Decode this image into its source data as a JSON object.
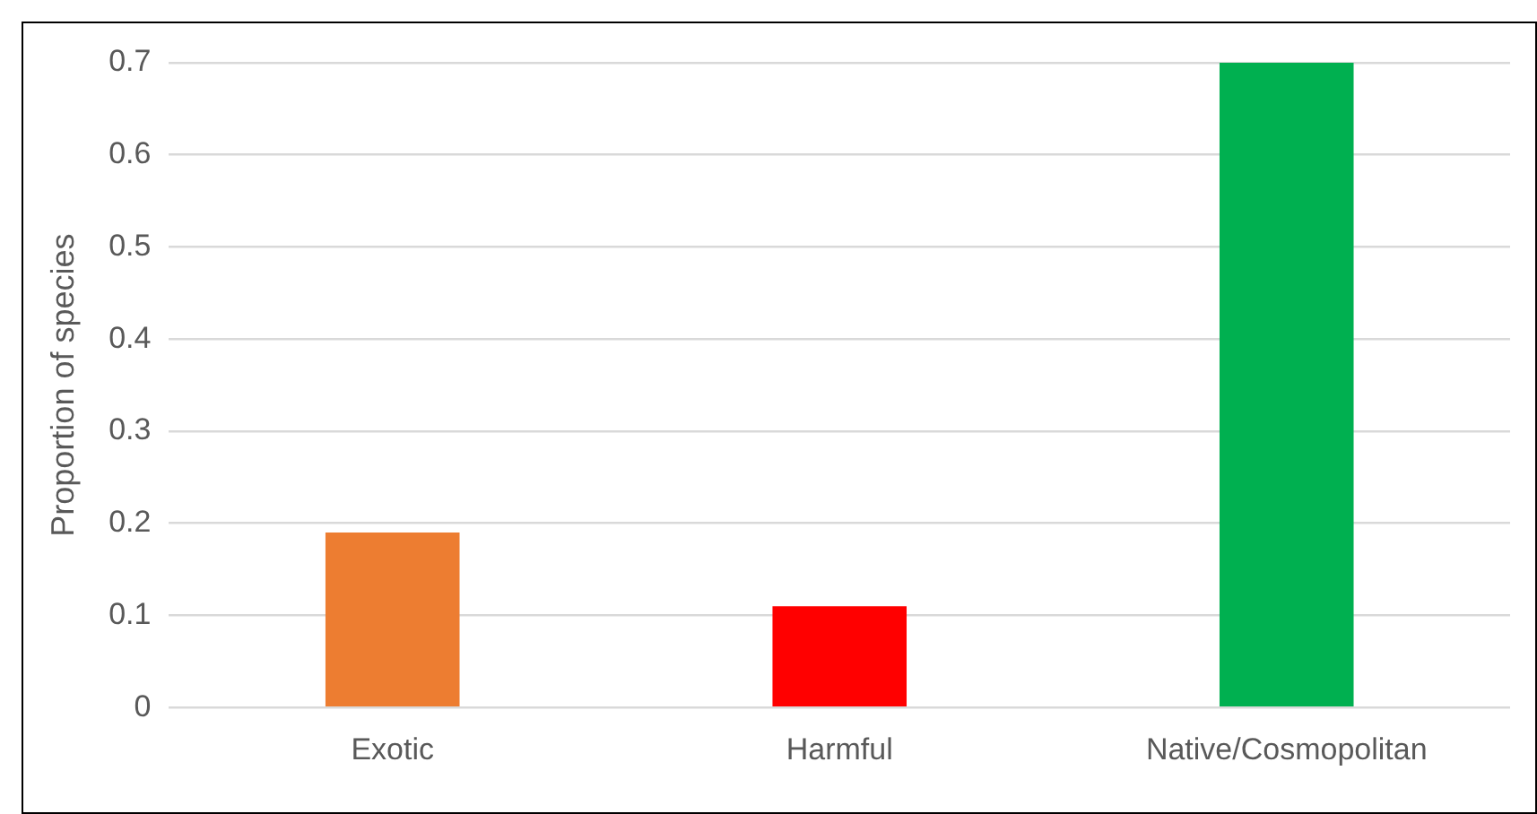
{
  "chart_data": {
    "type": "bar",
    "ylabel": "Proportion of species",
    "categories": [
      "Exotic",
      "Harmful",
      "Native/Cosmopolitan"
    ],
    "values": [
      0.19,
      0.11,
      0.7
    ],
    "colors": [
      "#ed7d31",
      "#ff0000",
      "#00b050"
    ],
    "ylim": [
      0,
      0.7
    ],
    "yticks": [
      0,
      0.1,
      0.2,
      0.3,
      0.4,
      0.5,
      0.6,
      0.7
    ],
    "grid": "y",
    "legend": false
  }
}
